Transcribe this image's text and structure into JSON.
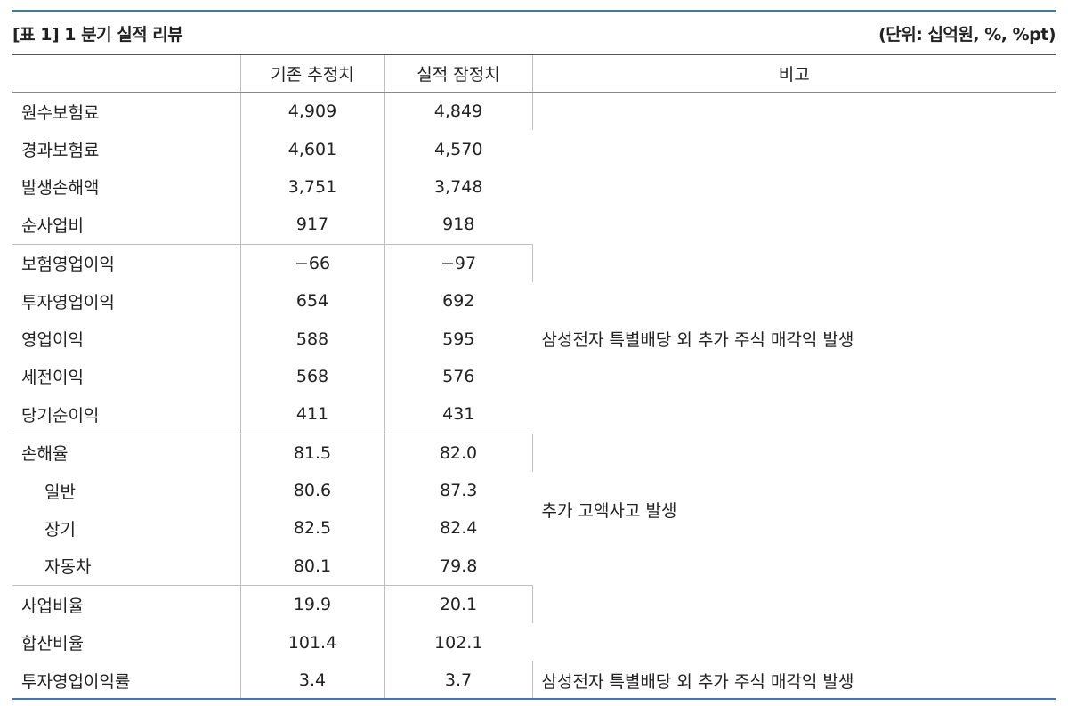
{
  "caption": {
    "title": "[표 1] 1 분기 실적 리뷰",
    "unit": "(단위: 십억원, %, %pt)"
  },
  "columns": [
    "",
    "기존 추정치",
    "실적 잠정치",
    "비고"
  ],
  "rows": [
    {
      "label": "원수보험료",
      "est": "4,909",
      "act": "4,849"
    },
    {
      "label": "경과보험료",
      "est": "4,601",
      "act": "4,570"
    },
    {
      "label": "발생손해액",
      "est": "3,751",
      "act": "3,748"
    },
    {
      "label": "순사업비",
      "est": "917",
      "act": "918"
    },
    {
      "label": "보험영업이익",
      "est": "−66",
      "act": "−97"
    },
    {
      "label": "투자영업이익",
      "est": "654",
      "act": "692"
    },
    {
      "label": "영업이익",
      "est": "588",
      "act": "595"
    },
    {
      "label": "세전이익",
      "est": "568",
      "act": "576"
    },
    {
      "label": "당기순이익",
      "est": "411",
      "act": "431"
    },
    {
      "label": "손해율",
      "est": "81.5",
      "act": "82.0"
    },
    {
      "label": "일반",
      "est": "80.6",
      "act": "87.3"
    },
    {
      "label": "장기",
      "est": "82.5",
      "act": "82.4"
    },
    {
      "label": "자동차",
      "est": "80.1",
      "act": "79.8"
    },
    {
      "label": "사업비율",
      "est": "19.9",
      "act": "20.1"
    },
    {
      "label": "합산비율",
      "est": "101.4",
      "act": "102.1"
    },
    {
      "label": "투자영업이익률",
      "est": "3.4",
      "act": "3.7"
    }
  ],
  "notes": {
    "g1": "",
    "g2": "삼성전자 특별배당 외 추가 주식 매각익 발생",
    "g3": "추가 고액사고 발생",
    "g4": "삼성전자 특별배당 외 추가 주식 매각익 발생"
  }
}
